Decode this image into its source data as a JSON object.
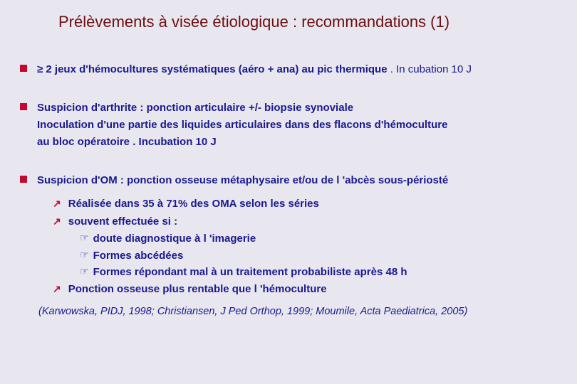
{
  "colors": {
    "background": "#e8e6ef",
    "title": "#6b0f0f",
    "bullet": "#c30a2e",
    "text": "#1a1a8f"
  },
  "title": "Prélèvements à visée étiologique : recommandations (1)",
  "b1": {
    "prefix": "≥ 2 ",
    "main": "jeux d'hémocultures systématiques (aéro + ana) au pic thermique",
    "suffix": " . In cubation 10 J"
  },
  "b2": {
    "line1a": "Suspicion d'arthrite : ponction articulaire +/- biopsie synoviale",
    "line2": "Inoculation d'une partie des liquides articulaires dans des flacons d'hémoculture",
    "line3": "au bloc opératoire . Incubation 10 J"
  },
  "b3": {
    "main": "Suspicion d'OM : ponction osseuse métaphysaire et/ou de l 'abcès sous-périosté"
  },
  "sub1": "Réalisée dans 35 à 71% des OMA selon les séries",
  "sub2": "souvent effectuée si :",
  "ss1": "doute diagnostique à l 'imagerie",
  "ss2": "Formes abcédées",
  "ss3": "Formes répondant mal à un traitement probabiliste après 48 h",
  "sub3": "Ponction osseuse plus rentable que l 'hémoculture",
  "citation": "(Karwowska, PIDJ, 1998; Christiansen, J Ped Orthop, 1999; Moumile, Acta Paediatrica, 2005)"
}
